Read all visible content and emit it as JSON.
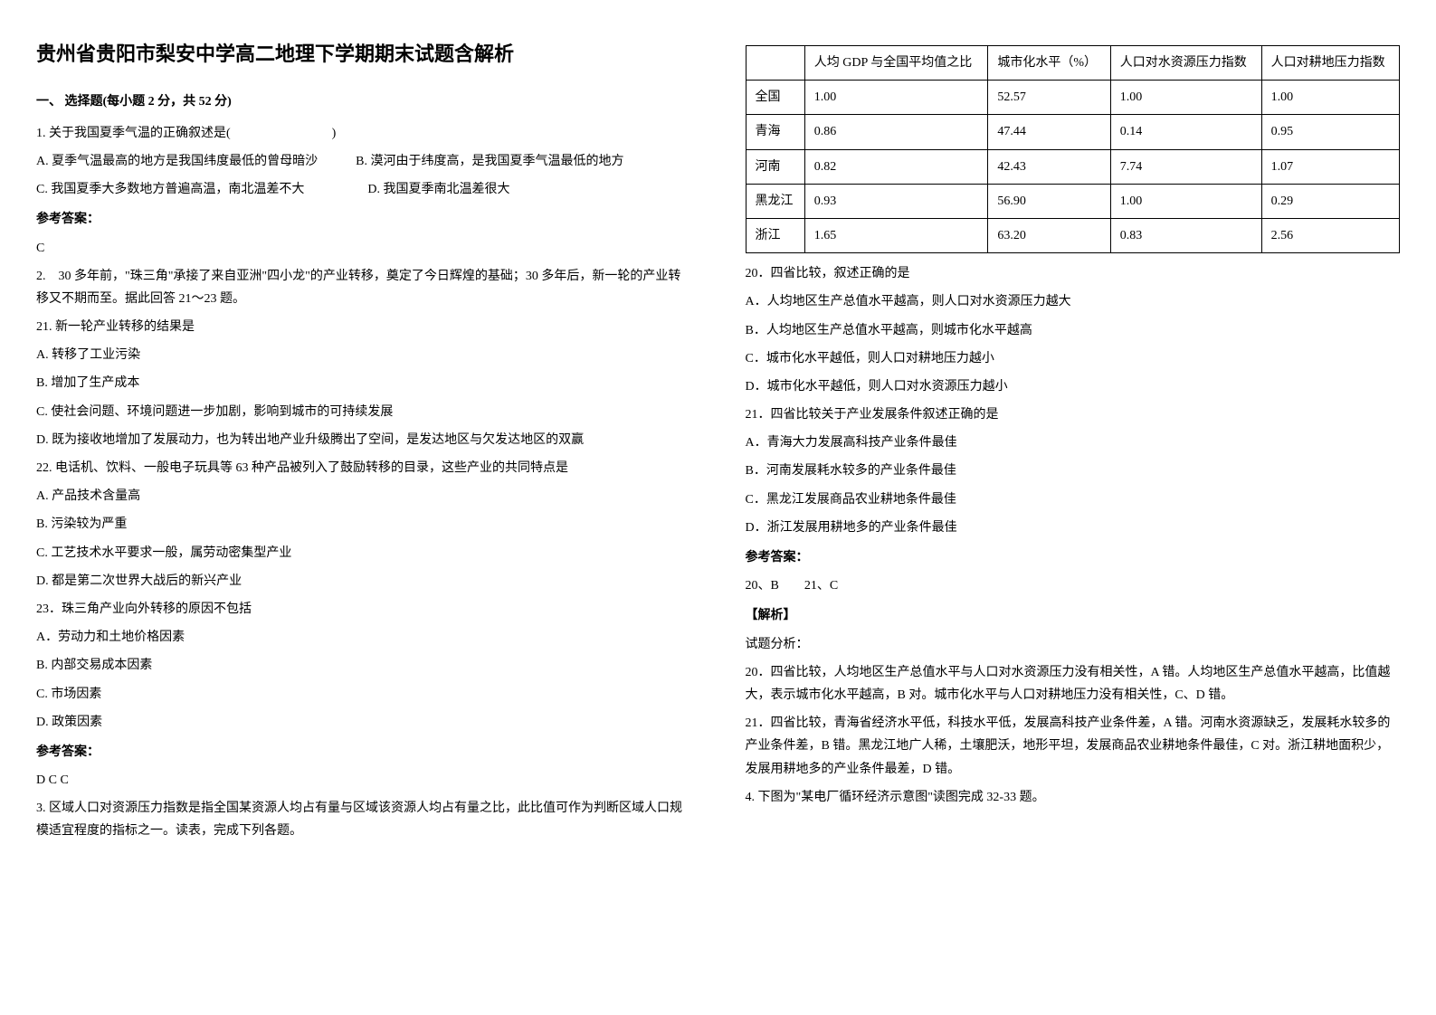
{
  "title": "贵州省贵阳市梨安中学高二地理下学期期末试题含解析",
  "section1_heading": "一、 选择题(每小题 2 分，共 52 分)",
  "q1": {
    "stem": "1. 关于我国夏季气温的正确叙述是(　　　　　　　　)",
    "optA": "A. 夏季气温最高的地方是我国纬度最低的曾母暗沙　　　B. 漠河由于纬度高，是我国夏季气温最低的地方",
    "optC": "C. 我国夏季大多数地方普遍高温，南北温差不大　　　　　D. 我国夏季南北温差很大",
    "answer_label": "参考答案：",
    "answer": "C"
  },
  "q2": {
    "intro": "2.　30 多年前，\"珠三角\"承接了来自亚洲\"四小龙\"的产业转移，奠定了今日辉煌的基础；30 多年后，新一轮的产业转移又不期而至。据此回答 21～23 题。",
    "q21_stem": "21. 新一轮产业转移的结果是",
    "q21_a": "A. 转移了工业污染",
    "q21_b": "B. 增加了生产成本",
    "q21_c": "C. 使社会问题、环境问题进一步加剧，影响到城市的可持续发展",
    "q21_d": "D. 既为接收地增加了发展动力，也为转出地产业升级腾出了空间，是发达地区与欠发达地区的双赢",
    "q22_stem": "22. 电话机、饮料、一般电子玩具等 63 种产品被列入了鼓励转移的目录，这些产业的共同特点是",
    "q22_a": "A. 产品技术含量高",
    "q22_b": "B. 污染较为严重",
    "q22_c": "C. 工艺技术水平要求一般，属劳动密集型产业",
    "q22_d": "D. 都是第二次世界大战后的新兴产业",
    "q23_stem": "23．珠三角产业向外转移的原因不包括",
    "q23_a": "A．劳动力和土地价格因素",
    "q23_b": "B. 内部交易成本因素",
    "q23_c": "C. 市场因素",
    "q23_d": "D. 政策因素",
    "answer_label": "参考答案：",
    "answer": "D  C  C"
  },
  "q3": {
    "stem": "3. 区域人口对资源压力指数是指全国某资源人均占有量与区域该资源人均占有量之比，此比值可作为判断区域人口规模适宜程度的指标之一。读表，完成下列各题。",
    "table": {
      "headers": [
        "",
        "人均 GDP 与全国平均值之比",
        "城市化水平（%）",
        "人口对水资源压力指数",
        "人口对耕地压力指数"
      ],
      "rows": [
        [
          "全国",
          "1.00",
          "52.57",
          "1.00",
          "1.00"
        ],
        [
          "青海",
          "0.86",
          "47.44",
          "0.14",
          "0.95"
        ],
        [
          "河南",
          "0.82",
          "42.43",
          "7.74",
          "1.07"
        ],
        [
          "黑龙江",
          "0.93",
          "56.90",
          "1.00",
          "0.29"
        ],
        [
          "浙江",
          "1.65",
          "63.20",
          "0.83",
          "2.56"
        ]
      ]
    },
    "q20_stem": "20．四省比较，叙述正确的是",
    "q20_a": "A．人均地区生产总值水平越高，则人口对水资源压力越大",
    "q20_b": "B．人均地区生产总值水平越高，则城市化水平越高",
    "q20_c": "C．城市化水平越低，则人口对耕地压力越小",
    "q20_d": "D．城市化水平越低，则人口对水资源压力越小",
    "q21_stem": "21．四省比较关于产业发展条件叙述正确的是",
    "q21_a": "A．青海大力发展高科技产业条件最佳",
    "q21_b": "B．河南发展耗水较多的产业条件最佳",
    "q21_c": "C．黑龙江发展商品农业耕地条件最佳",
    "q21_d": "D．浙江发展用耕地多的产业条件最佳",
    "answer_label": "参考答案：",
    "answer": "20、B　　21、C",
    "analysis_label": "【解析】",
    "analysis_sub": "试题分析：",
    "analysis_20": "20．四省比较，人均地区生产总值水平与人口对水资源压力没有相关性，A 错。人均地区生产总值水平越高，比值越大，表示城市化水平越高，B 对。城市化水平与人口对耕地压力没有相关性，C、D 错。",
    "analysis_21": "21．四省比较，青海省经济水平低，科技水平低，发展高科技产业条件差，A 错。河南水资源缺乏，发展耗水较多的产业条件差，B 错。黑龙江地广人稀，土壤肥沃，地形平坦，发展商品农业耕地条件最佳，C 对。浙江耕地面积少，发展用耕地多的产业条件最差，D 错。"
  },
  "q4": {
    "stem": "4. 下图为\"某电厂循环经济示意图\"读图完成 32-33 题。"
  }
}
